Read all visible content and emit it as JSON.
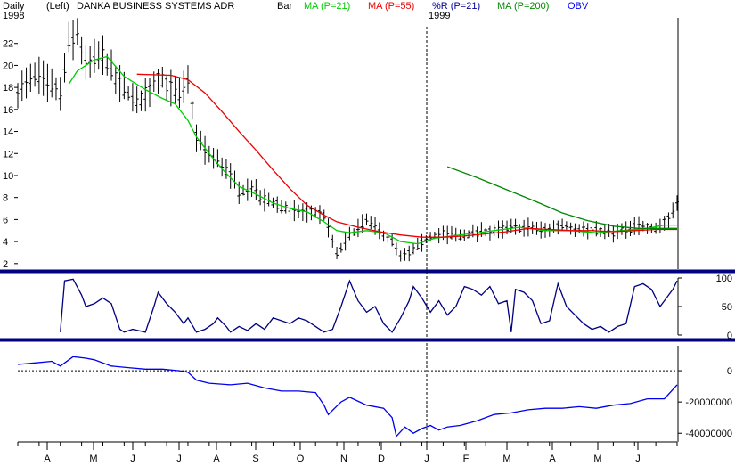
{
  "header": {
    "period": "Daily",
    "axis_side": "(Left)",
    "title": "DANKA BUSINESS SYSTEMS ADR",
    "year_left": "1998",
    "year_right": "1999",
    "style": "Bar"
  },
  "legend": [
    {
      "label": "MA (P=21)",
      "color": "#00cc00"
    },
    {
      "label": "MA (P=55)",
      "color": "#ee0000"
    },
    {
      "label": "%R (P=21)",
      "color": "#000099"
    },
    {
      "label": "MA (P=200)",
      "color": "#008800"
    },
    {
      "label": "OBV",
      "color": "#0000ee"
    }
  ],
  "colors": {
    "frame": "#000080",
    "price_bars": "#000000",
    "r_line": "#000080",
    "obv_line": "#0000ee",
    "ma21": "#00cc00",
    "ma55": "#ee0000",
    "ma200": "#008800"
  },
  "x_months": [
    "A",
    "M",
    "J",
    "J",
    "A",
    "S",
    "O",
    "N",
    "D",
    "J",
    "F",
    "M",
    "A",
    "M",
    "J"
  ],
  "chart_data": [
    {
      "type": "line",
      "title": "DANKA BUSINESS SYSTEMS ADR",
      "panel": "price",
      "ylim": [
        1.5,
        24
      ],
      "yticks": [
        2,
        4,
        6,
        8,
        10,
        12,
        14,
        16,
        18,
        20,
        22
      ],
      "close_anchors": [
        [
          0,
          17.8
        ],
        [
          5,
          19
        ],
        [
          10,
          17.5
        ],
        [
          12,
          22
        ],
        [
          14,
          23
        ],
        [
          16,
          20
        ],
        [
          20,
          21
        ],
        [
          23,
          18.8
        ],
        [
          28,
          16.5
        ],
        [
          33,
          19
        ],
        [
          38,
          17.2
        ],
        [
          40,
          18.5
        ],
        [
          42,
          13.5
        ],
        [
          45,
          11.8
        ],
        [
          48,
          11
        ],
        [
          50,
          10
        ],
        [
          52,
          8.5
        ],
        [
          55,
          9
        ],
        [
          57,
          8
        ],
        [
          60,
          7.5
        ],
        [
          64,
          6.8
        ],
        [
          68,
          6.7
        ],
        [
          72,
          6.4
        ],
        [
          75,
          2.8
        ],
        [
          78,
          4.5
        ],
        [
          80,
          5.3
        ],
        [
          82,
          5.8
        ],
        [
          85,
          5
        ],
        [
          88,
          4
        ],
        [
          90,
          2.5
        ],
        [
          93,
          3.2
        ],
        [
          97,
          4.5
        ],
        [
          100,
          4.7
        ],
        [
          104,
          4.5
        ],
        [
          108,
          4.8
        ],
        [
          112,
          5
        ],
        [
          116,
          5.2
        ],
        [
          120,
          5.3
        ],
        [
          124,
          5
        ],
        [
          128,
          5.5
        ],
        [
          132,
          5.2
        ],
        [
          135,
          5
        ],
        [
          140,
          4.8
        ],
        [
          143,
          5
        ],
        [
          146,
          5.5
        ],
        [
          150,
          5.2
        ],
        [
          153,
          6
        ],
        [
          155,
          7.8
        ]
      ],
      "series": [
        {
          "name": "MA (P=21)",
          "color": "#00cc00",
          "points": [
            [
              12,
              18.3
            ],
            [
              14,
              19.5
            ],
            [
              18,
              20.5
            ],
            [
              21,
              20.8
            ],
            [
              25,
              19
            ],
            [
              30,
              17.8
            ],
            [
              34,
              17
            ],
            [
              37,
              16.5
            ],
            [
              40,
              15
            ],
            [
              42,
              13.5
            ],
            [
              45,
              12
            ],
            [
              48,
              10.6
            ],
            [
              52,
              9
            ],
            [
              56,
              8.3
            ],
            [
              60,
              7.5
            ],
            [
              64,
              7
            ],
            [
              68,
              6.7
            ],
            [
              72,
              5.8
            ],
            [
              75,
              5
            ],
            [
              78,
              4.8
            ],
            [
              82,
              5
            ],
            [
              86,
              4.8
            ],
            [
              90,
              4
            ],
            [
              94,
              3.8
            ],
            [
              98,
              4.3
            ],
            [
              102,
              4.5
            ],
            [
              106,
              4.7
            ],
            [
              112,
              5
            ],
            [
              118,
              5.3
            ],
            [
              124,
              5
            ],
            [
              130,
              5
            ],
            [
              136,
              4.8
            ],
            [
              142,
              5
            ],
            [
              148,
              5.2
            ],
            [
              152,
              5.5
            ],
            [
              155,
              5.5
            ]
          ]
        },
        {
          "name": "MA (P=55)",
          "color": "#ee0000",
          "points": [
            [
              28,
              19.2
            ],
            [
              36,
              19.1
            ],
            [
              40,
              18.7
            ],
            [
              44,
              17.5
            ],
            [
              48,
              15.8
            ],
            [
              52,
              14
            ],
            [
              56,
              12.3
            ],
            [
              60,
              10.5
            ],
            [
              64,
              8.8
            ],
            [
              68,
              7.3
            ],
            [
              72,
              6.4
            ],
            [
              75,
              5.8
            ],
            [
              80,
              5.3
            ],
            [
              85,
              4.9
            ],
            [
              90,
              4.6
            ],
            [
              95,
              4.4
            ],
            [
              100,
              4.4
            ],
            [
              105,
              4.5
            ],
            [
              110,
              4.7
            ],
            [
              115,
              4.9
            ],
            [
              120,
              5.2
            ],
            [
              125,
              5.1
            ],
            [
              130,
              5
            ],
            [
              135,
              5
            ],
            [
              140,
              4.9
            ],
            [
              145,
              5
            ],
            [
              150,
              5.1
            ],
            [
              155,
              5.1
            ]
          ]
        },
        {
          "name": "MA (P=200)",
          "color": "#008800",
          "points": [
            [
              101,
              10.8
            ],
            [
              108,
              9.8
            ],
            [
              115,
              8.7
            ],
            [
              122,
              7.6
            ],
            [
              128,
              6.6
            ],
            [
              134,
              5.9
            ],
            [
              140,
              5.4
            ],
            [
              146,
              5.2
            ],
            [
              152,
              5.2
            ],
            [
              155,
              5.2
            ]
          ]
        }
      ]
    },
    {
      "type": "line",
      "panel": "williams_r",
      "name": "%R (P=21)",
      "ylim": [
        0,
        100
      ],
      "yticks": [
        0,
        50,
        100
      ],
      "points": [
        [
          10,
          5
        ],
        [
          11,
          95
        ],
        [
          13,
          98
        ],
        [
          15,
          70
        ],
        [
          16,
          50
        ],
        [
          18,
          55
        ],
        [
          20,
          65
        ],
        [
          22,
          55
        ],
        [
          24,
          10
        ],
        [
          25,
          5
        ],
        [
          27,
          10
        ],
        [
          30,
          5
        ],
        [
          32,
          50
        ],
        [
          33,
          75
        ],
        [
          35,
          55
        ],
        [
          37,
          40
        ],
        [
          39,
          20
        ],
        [
          40,
          30
        ],
        [
          42,
          5
        ],
        [
          44,
          10
        ],
        [
          46,
          20
        ],
        [
          47,
          30
        ],
        [
          49,
          15
        ],
        [
          50,
          5
        ],
        [
          52,
          15
        ],
        [
          54,
          8
        ],
        [
          56,
          20
        ],
        [
          58,
          10
        ],
        [
          60,
          30
        ],
        [
          62,
          25
        ],
        [
          64,
          20
        ],
        [
          66,
          30
        ],
        [
          68,
          25
        ],
        [
          70,
          15
        ],
        [
          72,
          5
        ],
        [
          74,
          10
        ],
        [
          76,
          50
        ],
        [
          78,
          95
        ],
        [
          80,
          60
        ],
        [
          82,
          40
        ],
        [
          84,
          50
        ],
        [
          86,
          20
        ],
        [
          88,
          5
        ],
        [
          90,
          30
        ],
        [
          92,
          60
        ],
        [
          93,
          85
        ],
        [
          95,
          65
        ],
        [
          97,
          40
        ],
        [
          99,
          60
        ],
        [
          101,
          35
        ],
        [
          103,
          50
        ],
        [
          105,
          85
        ],
        [
          107,
          80
        ],
        [
          109,
          70
        ],
        [
          111,
          85
        ],
        [
          113,
          55
        ],
        [
          115,
          60
        ],
        [
          116,
          5
        ],
        [
          117,
          80
        ],
        [
          119,
          75
        ],
        [
          121,
          60
        ],
        [
          123,
          20
        ],
        [
          125,
          25
        ],
        [
          127,
          90
        ],
        [
          129,
          50
        ],
        [
          131,
          35
        ],
        [
          133,
          20
        ],
        [
          135,
          10
        ],
        [
          137,
          15
        ],
        [
          139,
          5
        ],
        [
          141,
          15
        ],
        [
          143,
          20
        ],
        [
          145,
          85
        ],
        [
          147,
          90
        ],
        [
          149,
          80
        ],
        [
          151,
          50
        ],
        [
          152,
          60
        ],
        [
          154,
          80
        ],
        [
          155,
          95
        ]
      ]
    },
    {
      "type": "line",
      "panel": "obv",
      "name": "OBV",
      "ylim": [
        -45000000,
        16000000
      ],
      "yticks": [
        0,
        -20000000,
        -40000000
      ],
      "tick_labels": [
        "0",
        "-20000000",
        "-40000000"
      ],
      "points": [
        [
          0,
          4000000
        ],
        [
          4,
          5000000
        ],
        [
          8,
          6000000
        ],
        [
          10,
          3000000
        ],
        [
          13,
          9000000
        ],
        [
          16,
          8000000
        ],
        [
          18,
          7000000
        ],
        [
          22,
          3000000
        ],
        [
          26,
          2000000
        ],
        [
          30,
          1000000
        ],
        [
          34,
          1000000
        ],
        [
          38,
          0
        ],
        [
          40,
          -1000000
        ],
        [
          42,
          -6000000
        ],
        [
          45,
          -8000000
        ],
        [
          50,
          -9000000
        ],
        [
          54,
          -8000000
        ],
        [
          58,
          -11000000
        ],
        [
          62,
          -13000000
        ],
        [
          66,
          -13000000
        ],
        [
          70,
          -14000000
        ],
        [
          72,
          -22000000
        ],
        [
          73,
          -28000000
        ],
        [
          76,
          -20000000
        ],
        [
          78,
          -17000000
        ],
        [
          82,
          -22000000
        ],
        [
          86,
          -24000000
        ],
        [
          88,
          -30000000
        ],
        [
          89,
          -42000000
        ],
        [
          91,
          -36000000
        ],
        [
          93,
          -40000000
        ],
        [
          95,
          -37000000
        ],
        [
          97,
          -35000000
        ],
        [
          99,
          -38000000
        ],
        [
          101,
          -36000000
        ],
        [
          104,
          -35000000
        ],
        [
          108,
          -32000000
        ],
        [
          112,
          -28000000
        ],
        [
          116,
          -27000000
        ],
        [
          120,
          -25000000
        ],
        [
          124,
          -24000000
        ],
        [
          128,
          -24000000
        ],
        [
          132,
          -23000000
        ],
        [
          136,
          -24000000
        ],
        [
          140,
          -22000000
        ],
        [
          144,
          -21000000
        ],
        [
          148,
          -18000000
        ],
        [
          152,
          -18000000
        ],
        [
          155,
          -9000000
        ]
      ]
    }
  ]
}
